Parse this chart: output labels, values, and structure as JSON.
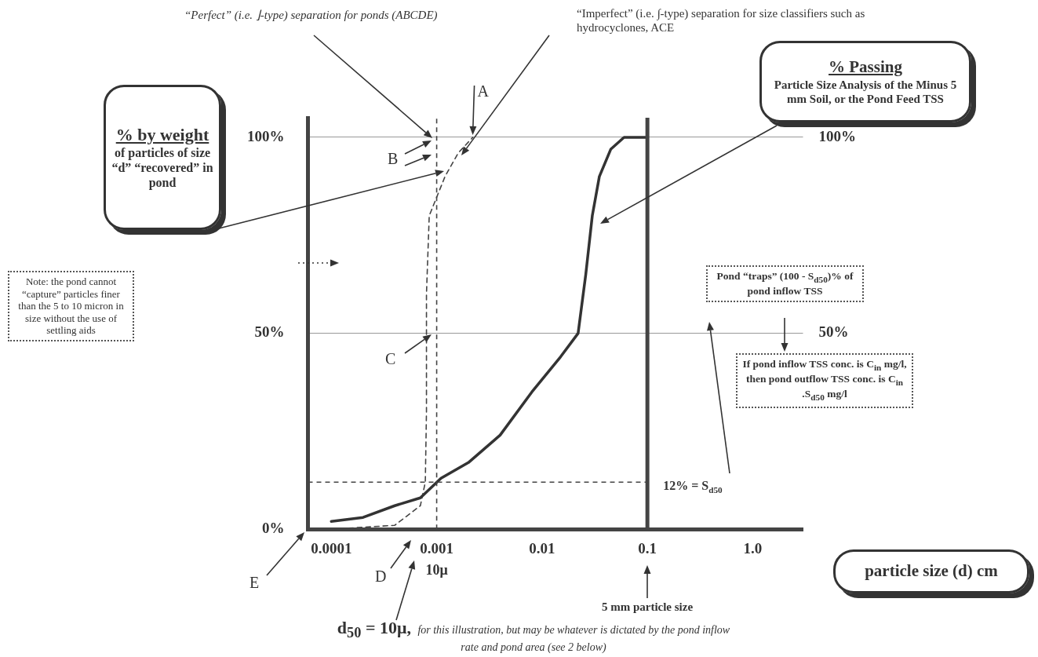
{
  "chart_data": {
    "type": "line",
    "log": "x",
    "legend": false,
    "grid": "y",
    "marker": "none",
    "xlabel": "particle size (d) cm",
    "ylabel": "% by weight\nof particles of size “d” “recovered” in pond",
    "y2label": "% Passing\nParticle Size Analysis of the Minus 5 mm Soil, or the Pond Feed TSS",
    "xlim": [
      6e-05,
      3
    ],
    "xticks": [
      0.0001,
      0.001,
      0.01,
      0.1,
      {
        "value": 1,
        "label": "1.0"
      }
    ],
    "ylim": [
      0,
      105
    ],
    "yticks": [
      {
        "value": 0,
        "label": "0%"
      },
      {
        "value": 50,
        "label": "50%"
      },
      {
        "value": 100,
        "label": "100%"
      }
    ],
    "y2lim": [
      0,
      105
    ],
    "y2ticks": [
      {
        "value": 50,
        "label": "50%"
      },
      {
        "value": 100,
        "label": "100%"
      }
    ],
    "series": [
      {
        "color": "#333333",
        "line_style": "solid",
        "x": [
          0.0001,
          0.0002,
          0.0004,
          0.0007,
          0.0011,
          0.002,
          0.004,
          0.008,
          0.015,
          0.022,
          0.026,
          0.03,
          0.035,
          0.045,
          0.06,
          0.1
        ],
        "values": [
          2,
          3,
          6,
          8,
          13,
          17,
          24,
          35,
          44,
          50,
          65,
          80,
          90,
          97,
          100,
          100
        ]
      },
      {
        "color": "#444444",
        "line_style": "dashed",
        "x": [
          0.0001,
          0.0004,
          0.0007,
          0.00078,
          0.0008,
          0.0008,
          0.00085,
          0.0012,
          0.0016,
          0.0022
        ],
        "values": [
          0,
          1,
          6,
          12,
          30,
          60,
          80,
          90,
          96,
          100
        ]
      }
    ],
    "ref_lines": [
      {
        "axis": "x",
        "value": 0.001,
        "label": "10μ",
        "line_style": "dashed",
        "color": "#444444"
      },
      {
        "axis": "x",
        "value": 0.1,
        "line_style": "solid",
        "color": "#444444"
      },
      {
        "axis": "y",
        "value": 12,
        "label": "12% = S$_{d50}$",
        "line_style": "dashed",
        "color": "#444444"
      }
    ],
    "annotations": [
      "“Perfect” (i.e. ⌋-type) separation for ponds (ABCDE)",
      "“Imperfect” (i.e. ∫-type) separation for size classifiers such as hydrocyclones, ACE",
      {
        "text": "A",
        "x": 0.0022,
        "y": 100
      },
      "B",
      "C",
      "D",
      "E",
      "Note: the pond cannot “capture” particles finer than the 5 to 10 micron in size without the use of settling aids",
      "Pond “traps” (100 - S$_{d50}$)% of pond inflow TSS",
      "If pond inflow TSS conc. is C$_{in}$ mg/l, then pond outflow TSS conc. is C$_{in}$ .S$_{d50}$ mg/l",
      "d$_{50}$ = 10μ, for this illustration, but may be whatever is dictated by the pond inflow rate and pond area (see 2 below)",
      "5 mm particle size"
    ]
  }
}
